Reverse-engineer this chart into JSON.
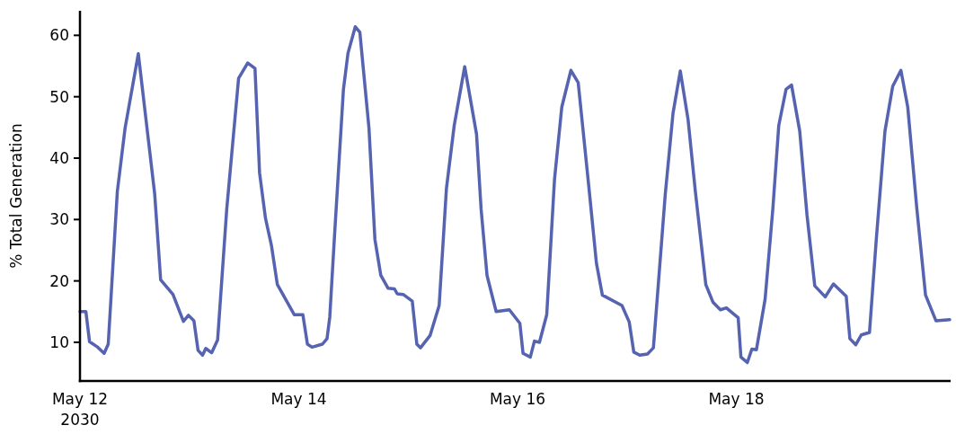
{
  "chart_data": {
    "type": "line",
    "ylabel": "% Total Generation",
    "xlim": [
      "2030-05-12T00:00",
      "2030-05-19T23:00"
    ],
    "xticks": [
      {
        "value": "2030-05-12",
        "label": "May 12\n2030"
      },
      {
        "value": "2030-05-14",
        "label": "May 14"
      },
      {
        "value": "2030-05-16",
        "label": "May 16"
      },
      {
        "value": "2030-05-18",
        "label": "May 18"
      }
    ],
    "ylim": [
      3.7,
      64
    ],
    "yticks": [
      10,
      20,
      30,
      40,
      50,
      60
    ],
    "line_style": "solid",
    "series": [
      {
        "color": "#5563b0",
        "x": [
          "2030-05-12T00:00",
          "2030-05-12T01:18",
          "2030-05-12T02:06",
          "2030-05-12T03:54",
          "2030-05-12T05:18",
          "2030-05-12T06:12",
          "2030-05-12T08:12",
          "2030-05-12T09:54",
          "2030-05-12T12:48",
          "2030-05-12T15:06",
          "2030-05-12T16:24",
          "2030-05-12T17:42",
          "2030-05-12T20:24",
          "2030-05-12T22:42",
          "2030-05-12T23:48",
          "2030-05-13T01:00",
          "2030-05-13T01:54",
          "2030-05-13T02:54",
          "2030-05-13T03:36",
          "2030-05-13T04:54",
          "2030-05-13T06:12",
          "2030-05-13T08:12",
          "2030-05-13T10:48",
          "2030-05-13T12:48",
          "2030-05-13T14:24",
          "2030-05-13T15:24",
          "2030-05-13T16:42",
          "2030-05-13T18:00",
          "2030-05-13T19:18",
          "2030-05-13T23:00",
          "2030-05-14T00:54",
          "2030-05-14T01:54",
          "2030-05-14T02:54",
          "2030-05-14T05:12",
          "2030-05-14T06:12",
          "2030-05-14T06:48",
          "2030-05-14T07:48",
          "2030-05-14T09:48",
          "2030-05-14T10:48",
          "2030-05-14T12:24",
          "2030-05-14T13:24",
          "2030-05-14T15:24",
          "2030-05-14T16:42",
          "2030-05-14T18:00",
          "2030-05-14T19:36",
          "2030-05-14T21:00",
          "2030-05-14T21:36",
          "2030-05-14T22:54",
          "2030-05-15T00:54",
          "2030-05-15T01:54",
          "2030-05-15T02:42",
          "2030-05-15T04:48",
          "2030-05-15T06:48",
          "2030-05-15T08:24",
          "2030-05-15T10:06",
          "2030-05-15T12:24",
          "2030-05-15T15:00",
          "2030-05-15T16:00",
          "2030-05-15T17:18",
          "2030-05-15T19:18",
          "2030-05-15T22:12",
          "2030-05-16T00:30",
          "2030-05-16T01:12",
          "2030-05-16T02:48",
          "2030-05-16T03:42",
          "2030-05-16T04:48",
          "2030-05-16T06:24",
          "2030-05-16T08:06",
          "2030-05-16T09:42",
          "2030-05-16T11:42",
          "2030-05-16T13:18",
          "2030-05-16T15:36",
          "2030-05-16T17:18",
          "2030-05-16T18:36",
          "2030-05-16T22:54",
          "2030-05-17T00:30",
          "2030-05-17T01:30",
          "2030-05-17T02:48",
          "2030-05-17T04:30",
          "2030-05-17T05:48",
          "2030-05-17T08:24",
          "2030-05-17T10:06",
          "2030-05-17T11:42",
          "2030-05-17T13:24",
          "2030-05-17T15:00",
          "2030-05-17T17:18",
          "2030-05-17T18:54",
          "2030-05-17T20:30",
          "2030-05-17T21:48",
          "2030-05-18T00:24",
          "2030-05-18T01:00",
          "2030-05-18T02:24",
          "2030-05-18T03:24",
          "2030-05-18T04:24",
          "2030-05-18T06:18",
          "2030-05-18T08:00",
          "2030-05-18T09:18",
          "2030-05-18T10:54",
          "2030-05-18T12:06",
          "2030-05-18T13:54",
          "2030-05-18T15:30",
          "2030-05-18T17:12",
          "2030-05-18T19:30",
          "2030-05-18T21:18",
          "2030-05-19T00:06",
          "2030-05-19T00:54",
          "2030-05-19T02:12",
          "2030-05-19T03:24",
          "2030-05-19T05:12",
          "2030-05-19T06:42",
          "2030-05-19T08:36",
          "2030-05-19T10:18",
          "2030-05-19T12:06",
          "2030-05-19T13:36",
          "2030-05-19T15:36",
          "2030-05-19T17:30",
          "2030-05-19T19:48",
          "2030-05-19T22:48"
        ],
        "values": [
          15.0,
          15.0,
          10.1,
          9.2,
          8.2,
          9.7,
          34.6,
          44.9,
          57.0,
          42.4,
          34.1,
          20.2,
          17.8,
          13.4,
          14.4,
          13.5,
          8.7,
          7.9,
          9.0,
          8.3,
          10.4,
          31.7,
          53.0,
          55.5,
          54.6,
          37.6,
          30.2,
          25.8,
          19.4,
          14.5,
          14.5,
          9.7,
          9.2,
          9.7,
          10.6,
          14.1,
          26.8,
          51.2,
          57.1,
          61.4,
          60.5,
          44.9,
          26.8,
          20.9,
          18.8,
          18.7,
          17.9,
          17.8,
          16.7,
          9.7,
          9.1,
          11.1,
          16.0,
          35.1,
          45.3,
          54.9,
          43.9,
          31.7,
          20.9,
          15.0,
          15.3,
          13.1,
          8.2,
          7.6,
          10.2,
          10.0,
          14.5,
          36.5,
          48.3,
          54.3,
          52.3,
          35.6,
          22.9,
          17.7,
          16.0,
          13.3,
          8.4,
          7.9,
          8.1,
          9.1,
          34.1,
          47.3,
          54.2,
          46.3,
          34.6,
          19.4,
          16.5,
          15.3,
          15.6,
          14.0,
          7.6,
          6.7,
          8.9,
          8.8,
          17.0,
          31.7,
          45.3,
          51.2,
          51.9,
          44.4,
          30.7,
          19.2,
          17.4,
          19.5,
          17.5,
          10.6,
          9.6,
          11.2,
          11.6,
          26.8,
          44.4,
          51.7,
          54.3,
          48.3,
          31.7,
          17.7,
          13.5,
          13.7
        ]
      }
    ]
  }
}
